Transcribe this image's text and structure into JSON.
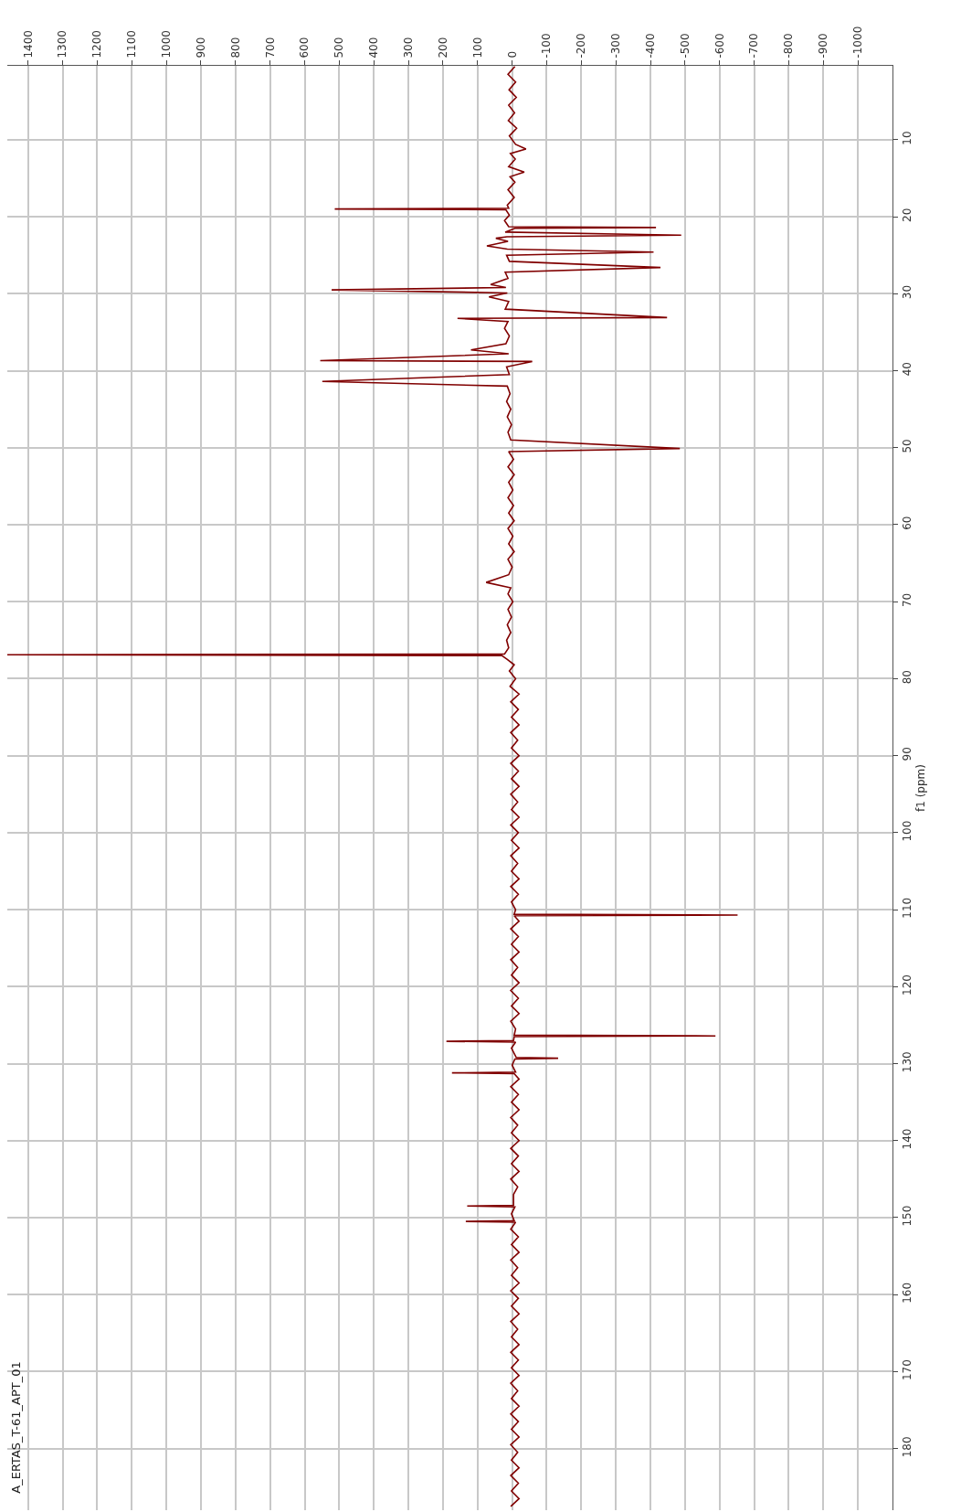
{
  "chart_data": {
    "type": "line",
    "orientation": "horizontal",
    "ylabel": "f1 (ppm)",
    "annotations": [
      "A_ERTAS_T-61_APT_01"
    ],
    "xlim": [
      1460,
      -1100
    ],
    "xticks": [
      1400,
      1300,
      1200,
      1100,
      1000,
      900,
      800,
      700,
      600,
      500,
      400,
      300,
      200,
      100,
      0,
      -100,
      -200,
      -300,
      -400,
      -500,
      -600,
      -700,
      -800,
      -900,
      -1000
    ],
    "ylim": [
      188,
      0.4
    ],
    "yticks": [
      10,
      20,
      30,
      40,
      50,
      60,
      70,
      80,
      90,
      100,
      110,
      120,
      130,
      140,
      150,
      160,
      170,
      180
    ],
    "grid": true,
    "series": [
      {
        "color": "#800000",
        "x": [
          0.5,
          1.5,
          2.5,
          3.5,
          4.5,
          5.5,
          6.5,
          7.5,
          8.5,
          9.5,
          10.6,
          11.2,
          11.8,
          12.5,
          13.5,
          14.2,
          14.8,
          15.5,
          16.5,
          17.5,
          18.5,
          18.9,
          19.0,
          19.1,
          19.8,
          20.5,
          21.3,
          21.4,
          21.5,
          22.0,
          22.4,
          22.6,
          22.8,
          23.2,
          23.8,
          24.2,
          24.6,
          25.0,
          25.8,
          26.6,
          27.2,
          28.0,
          28.8,
          29.2,
          29.5,
          29.9,
          30.4,
          31.0,
          32.0,
          33.1,
          33.2,
          33.6,
          34.5,
          35.5,
          36.5,
          37.3,
          37.8,
          38.7,
          38.8,
          39.5,
          40.5,
          41.4,
          42.0,
          43,
          44,
          45,
          46,
          47,
          48,
          49,
          50.1,
          50.5,
          51.5,
          52.5,
          53.5,
          54.5,
          55.5,
          56.5,
          57.5,
          58.5,
          59.5,
          60.5,
          61.5,
          62.5,
          63.5,
          64.5,
          65.5,
          66.5,
          67.5,
          68.2,
          69,
          70,
          71,
          72,
          73,
          74,
          75,
          76,
          76.8,
          76.9,
          77.0,
          77.5,
          78.2,
          79,
          80,
          81,
          82,
          83,
          84,
          85,
          86,
          87,
          88,
          89,
          90,
          91,
          92,
          93,
          94,
          95,
          96,
          97,
          98,
          99,
          100,
          101,
          102,
          103,
          104,
          105,
          106,
          107,
          108,
          109,
          110,
          110.6,
          110.7,
          110.8,
          111.5,
          112.5,
          113.5,
          114.5,
          115.5,
          116.5,
          117.5,
          118.5,
          119.5,
          120.5,
          121.5,
          122.5,
          123.5,
          124.5,
          125.5,
          126.3,
          126.4,
          126.5,
          127.0,
          127.1,
          127.2,
          128.0,
          129.2,
          129.3,
          129.4,
          130.2,
          131.1,
          131.2,
          131.3,
          132.0,
          133,
          134,
          135,
          136,
          137,
          138,
          139,
          140,
          141,
          142,
          143,
          144,
          145,
          146,
          147,
          148.4,
          148.5,
          148.6,
          149.5,
          150.4,
          150.5,
          150.6,
          151.5,
          152.5,
          153.5,
          154.5,
          155.5,
          156.5,
          157.5,
          158.5,
          159.5,
          160.5,
          161.5,
          162.5,
          163.5,
          164.5,
          165.5,
          166.5,
          167.5,
          168.5,
          169.5,
          170.5,
          171.5,
          172.5,
          173.5,
          174.5,
          175.5,
          176.5,
          177.5,
          178.5,
          179.5,
          180.5,
          181.5,
          182.5,
          183.5,
          184.5,
          185.5,
          186.5,
          187.5
        ],
        "values": [
          -8,
          12,
          -10,
          9,
          -12,
          10,
          -7,
          11,
          -13,
          8,
          -10,
          -40,
          5,
          -9,
          10,
          -35,
          6,
          -8,
          12,
          -6,
          14,
          10,
          513,
          18,
          8,
          22,
          10,
          -416,
          -8,
          20,
          -489,
          15,
          47,
          12,
          73,
          14,
          -409,
          16,
          8,
          -429,
          20,
          12,
          62,
          18,
          522,
          14,
          67,
          10,
          20,
          -448,
          158,
          12,
          22,
          8,
          18,
          119,
          10,
          555,
          -58,
          16,
          8,
          549,
          14,
          6,
          16,
          4,
          14,
          2,
          12,
          4,
          -485,
          10,
          -4,
          12,
          -6,
          10,
          -2,
          12,
          -4,
          10,
          -6,
          12,
          -2,
          10,
          -6,
          12,
          0,
          10,
          75,
          4,
          12,
          -2,
          12,
          2,
          14,
          4,
          16,
          10,
          22,
          1460,
          30,
          14,
          -6,
          8,
          -10,
          6,
          -20,
          4,
          -18,
          2,
          -20,
          4,
          -16,
          2,
          -20,
          4,
          -18,
          2,
          -20,
          4,
          -16,
          2,
          -20,
          4,
          -18,
          2,
          -20,
          4,
          -16,
          2,
          -20,
          4,
          -18,
          2,
          -10,
          -6,
          -652,
          -6,
          -20,
          4,
          -18,
          2,
          -20,
          4,
          -16,
          2,
          -20,
          4,
          -18,
          2,
          -20,
          4,
          -10,
          -6,
          -588,
          -6,
          -4,
          190,
          -10,
          2,
          -12,
          -133,
          -8,
          0,
          -10,
          174,
          -6,
          -20,
          4,
          -18,
          2,
          -20,
          4,
          -16,
          2,
          -20,
          4,
          -18,
          2,
          -20,
          4,
          -16,
          -4,
          -4,
          130,
          -8,
          2,
          -6,
          134,
          -10,
          4,
          -18,
          2,
          -20,
          4,
          -16,
          2,
          -20,
          4,
          -18,
          2,
          -20,
          4,
          -16,
          2,
          -20,
          4,
          -18,
          2,
          -20,
          4,
          -16,
          2,
          -20,
          4,
          -18,
          2,
          -20,
          4,
          -16,
          2,
          -20,
          4,
          -18,
          2,
          -20,
          4
        ]
      }
    ]
  }
}
